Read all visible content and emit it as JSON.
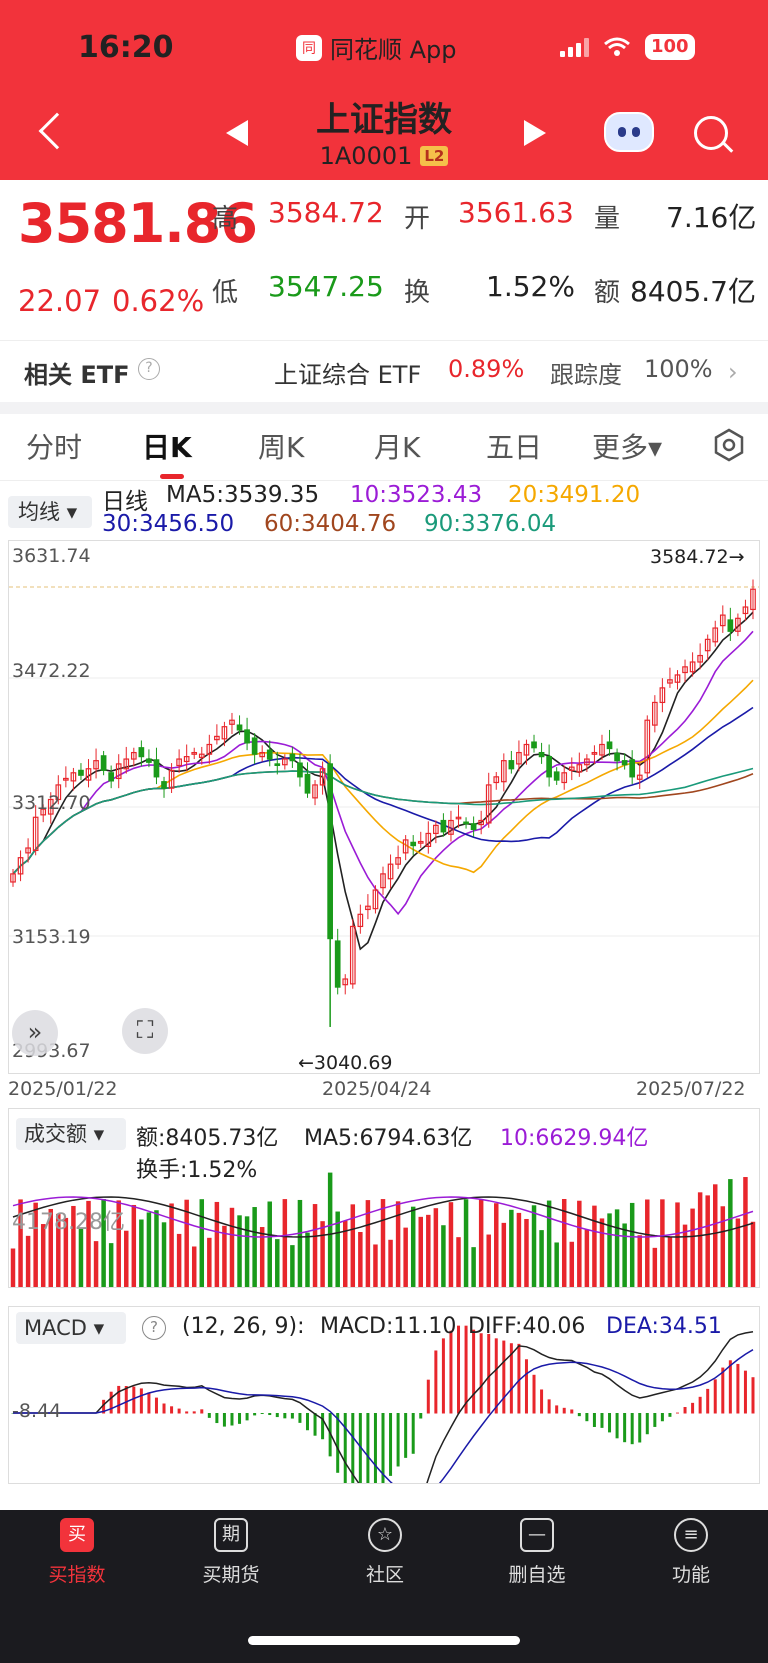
{
  "status_bar": {
    "time": "16:20",
    "app_name": "同花顺 App",
    "app_logo": "同",
    "battery": "100"
  },
  "header": {
    "title": "上证指数",
    "code": "1A0001",
    "level_badge": "L2"
  },
  "quote": {
    "price": "3581.86",
    "change": "22.07",
    "change_pct": "0.62%",
    "high_label": "高",
    "high": "3584.72",
    "open_label": "开",
    "open": "3561.63",
    "volume_label": "量",
    "volume": "7.16亿",
    "low_label": "低",
    "low": "3547.25",
    "turnover_label": "换",
    "turnover": "1.52%",
    "amount_label": "额",
    "amount": "8405.7亿"
  },
  "etf": {
    "label": "相关 ETF",
    "help": "?",
    "name": "上证综合 ETF",
    "change": "0.89%",
    "tracking_label": "跟踪度",
    "tracking": "100%",
    "chevron": "›"
  },
  "tabs": [
    "分时",
    "日K",
    "周K",
    "月K",
    "五日",
    "更多▾"
  ],
  "ma_legend": {
    "selector": "均线 ▾",
    "period": "日线",
    "ma5": "MA5:3539.35",
    "ma10": "10:3523.43",
    "ma20": "20:3491.20",
    "ma30": "30:3456.50",
    "ma60": "60:3404.76",
    "ma90": "90:3376.04"
  },
  "kchart_labels": {
    "y_top": "3631.74",
    "y2": "3472.22",
    "y3": "3312.70",
    "y4": "3153.19",
    "y_bottom": "2993.67",
    "max_marker": "3584.72→",
    "min_marker": "←3040.69",
    "x_start": "2025/01/22",
    "x_mid": "2025/04/24",
    "x_end": "2025/07/22",
    "expand": "»",
    "fullscreen": "⛶"
  },
  "volume": {
    "selector": "成交额 ▾",
    "amount": "额:8405.73亿",
    "ma5": "MA5:6794.63亿",
    "ma10": "10:6629.94亿",
    "turnover": "换手:1.52%",
    "axis": "4178.28亿"
  },
  "macd": {
    "selector": "MACD ▾",
    "help": "?",
    "params": "(12, 26, 9):",
    "macd": "MACD:11.10",
    "diff": "DIFF:40.06",
    "dea": "DEA:34.51",
    "axis": "-8.44"
  },
  "bottom_nav": [
    {
      "label": "买指数",
      "icon": "买"
    },
    {
      "label": "买期货",
      "icon": "期"
    },
    {
      "label": "社区",
      "icon": "☆"
    },
    {
      "label": "删自选",
      "icon": "—"
    },
    {
      "label": "功能",
      "icon": "≡"
    }
  ],
  "chart_data": [
    {
      "type": "candlestick",
      "title": "日K",
      "ylim": [
        2993.67,
        3631.74
      ],
      "x_range": [
        "2025/01/22",
        "2025/07/22"
      ],
      "high_marker": 3584.72,
      "low_marker": 3040.69,
      "close_series": [
        3230,
        3250,
        3262,
        3300,
        3310,
        3322,
        3340,
        3348,
        3355,
        3352,
        3360,
        3370,
        3358,
        3345,
        3366,
        3372,
        3380,
        3375,
        3368,
        3350,
        3336,
        3358,
        3372,
        3375,
        3380,
        3378,
        3390,
        3400,
        3412,
        3420,
        3408,
        3392,
        3378,
        3380,
        3372,
        3365,
        3372,
        3370,
        3350,
        3330,
        3340,
        3360,
        3150,
        3090,
        3100,
        3165,
        3180,
        3190,
        3210,
        3230,
        3242,
        3250,
        3272,
        3265,
        3270,
        3280,
        3290,
        3282,
        3296,
        3300,
        3292,
        3285,
        3296,
        3340,
        3350,
        3370,
        3360,
        3380,
        3390,
        3386,
        3375,
        3350,
        3346,
        3355,
        3362,
        3365,
        3372,
        3380,
        3390,
        3385,
        3370,
        3365,
        3350,
        3352,
        3420,
        3442,
        3460,
        3470,
        3476,
        3486,
        3492,
        3500,
        3520,
        3534,
        3550,
        3530,
        3546,
        3560,
        3582
      ],
      "series": [
        {
          "name": "MA5",
          "color": "#222222"
        },
        {
          "name": "MA10",
          "color": "#9b1cd6"
        },
        {
          "name": "MA20",
          "color": "#f5a800"
        },
        {
          "name": "MA30",
          "color": "#1a1aa8"
        },
        {
          "name": "MA60",
          "color": "#a0461e"
        },
        {
          "name": "MA90",
          "color": "#1a9a7a"
        }
      ]
    }
  ]
}
